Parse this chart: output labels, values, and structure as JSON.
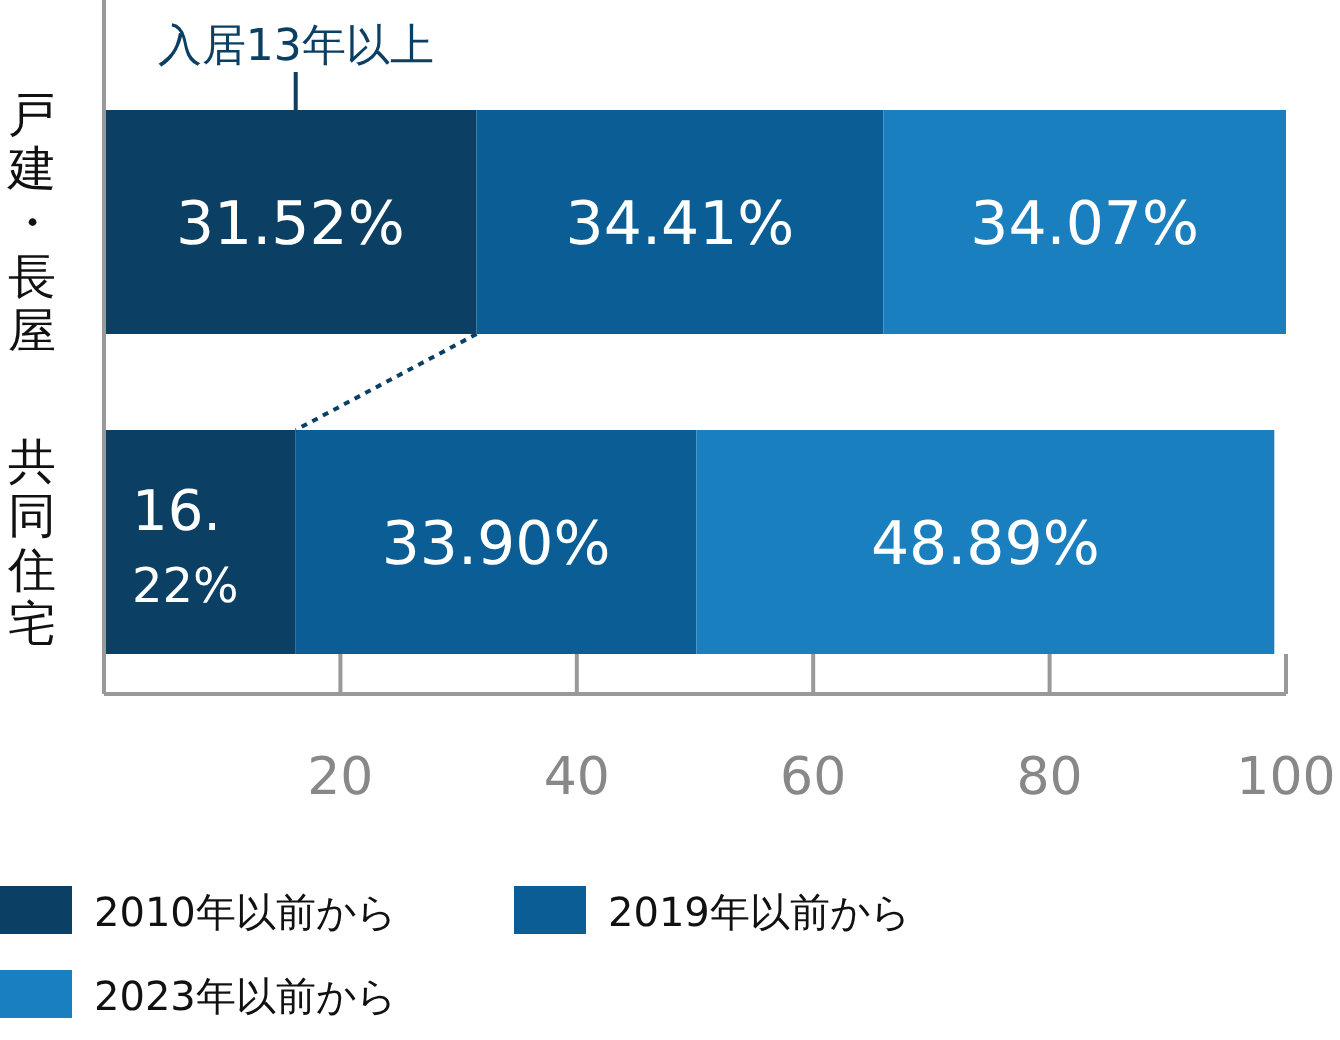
{
  "chart_data": {
    "type": "bar",
    "orientation": "horizontal",
    "stacked": true,
    "categories": [
      "戸建・長屋",
      "共同住宅"
    ],
    "series": [
      {
        "name": "2010年以前から",
        "color": "#0b3f63",
        "values": [
          31.52,
          16.22
        ],
        "value_labels": [
          "31.52%",
          "16.22%"
        ]
      },
      {
        "name": "2019年以前から",
        "color": "#0a5e95",
        "values": [
          34.41,
          33.9
        ],
        "value_labels": [
          "34.41%",
          "33.90%"
        ]
      },
      {
        "name": "2023年以前から",
        "color": "#1a7fbf",
        "values": [
          34.07,
          48.89
        ],
        "value_labels": [
          "34.07%",
          "48.89%"
        ]
      }
    ],
    "xlim": [
      0,
      100
    ],
    "xticks": [
      20,
      40,
      60,
      80,
      100
    ],
    "annotations": [
      "入居13年以上"
    ],
    "legend": "bottom",
    "grid": false
  }
}
